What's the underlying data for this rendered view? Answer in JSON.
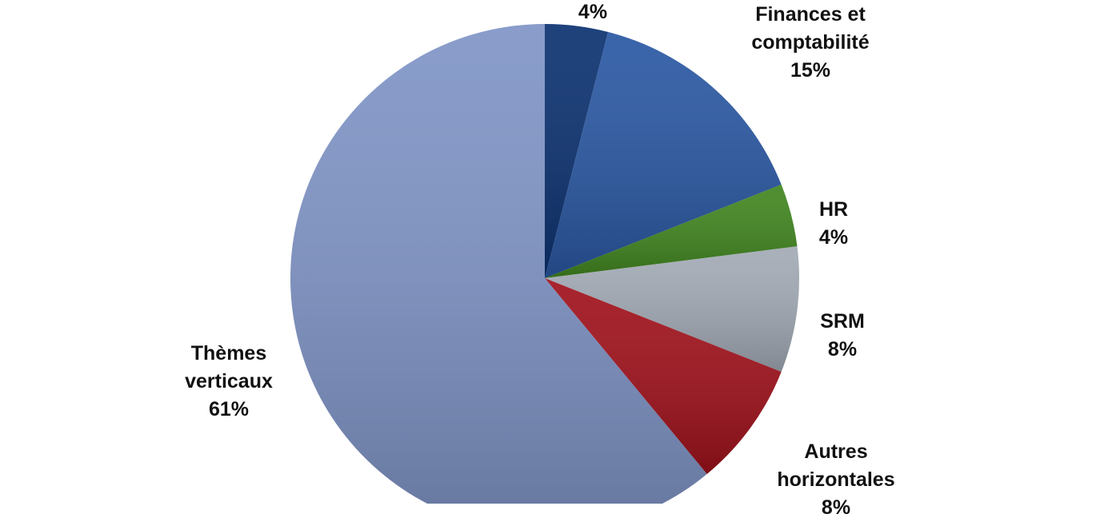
{
  "chart_data": {
    "type": "pie",
    "categories": [
      null,
      "Finances et comptabilité",
      "HR",
      "SRM",
      "Autres horizontales",
      "Thèmes verticaux"
    ],
    "values": [
      4,
      15,
      4,
      8,
      8,
      61
    ],
    "value_labels": [
      "4%",
      "15%",
      "4%",
      "8%",
      "8%",
      "61%"
    ],
    "colors": [
      "#0b3170",
      "#2a58a3",
      "#41861f",
      "#a2aab5",
      "#a0111b",
      "#7f94c6"
    ]
  }
}
